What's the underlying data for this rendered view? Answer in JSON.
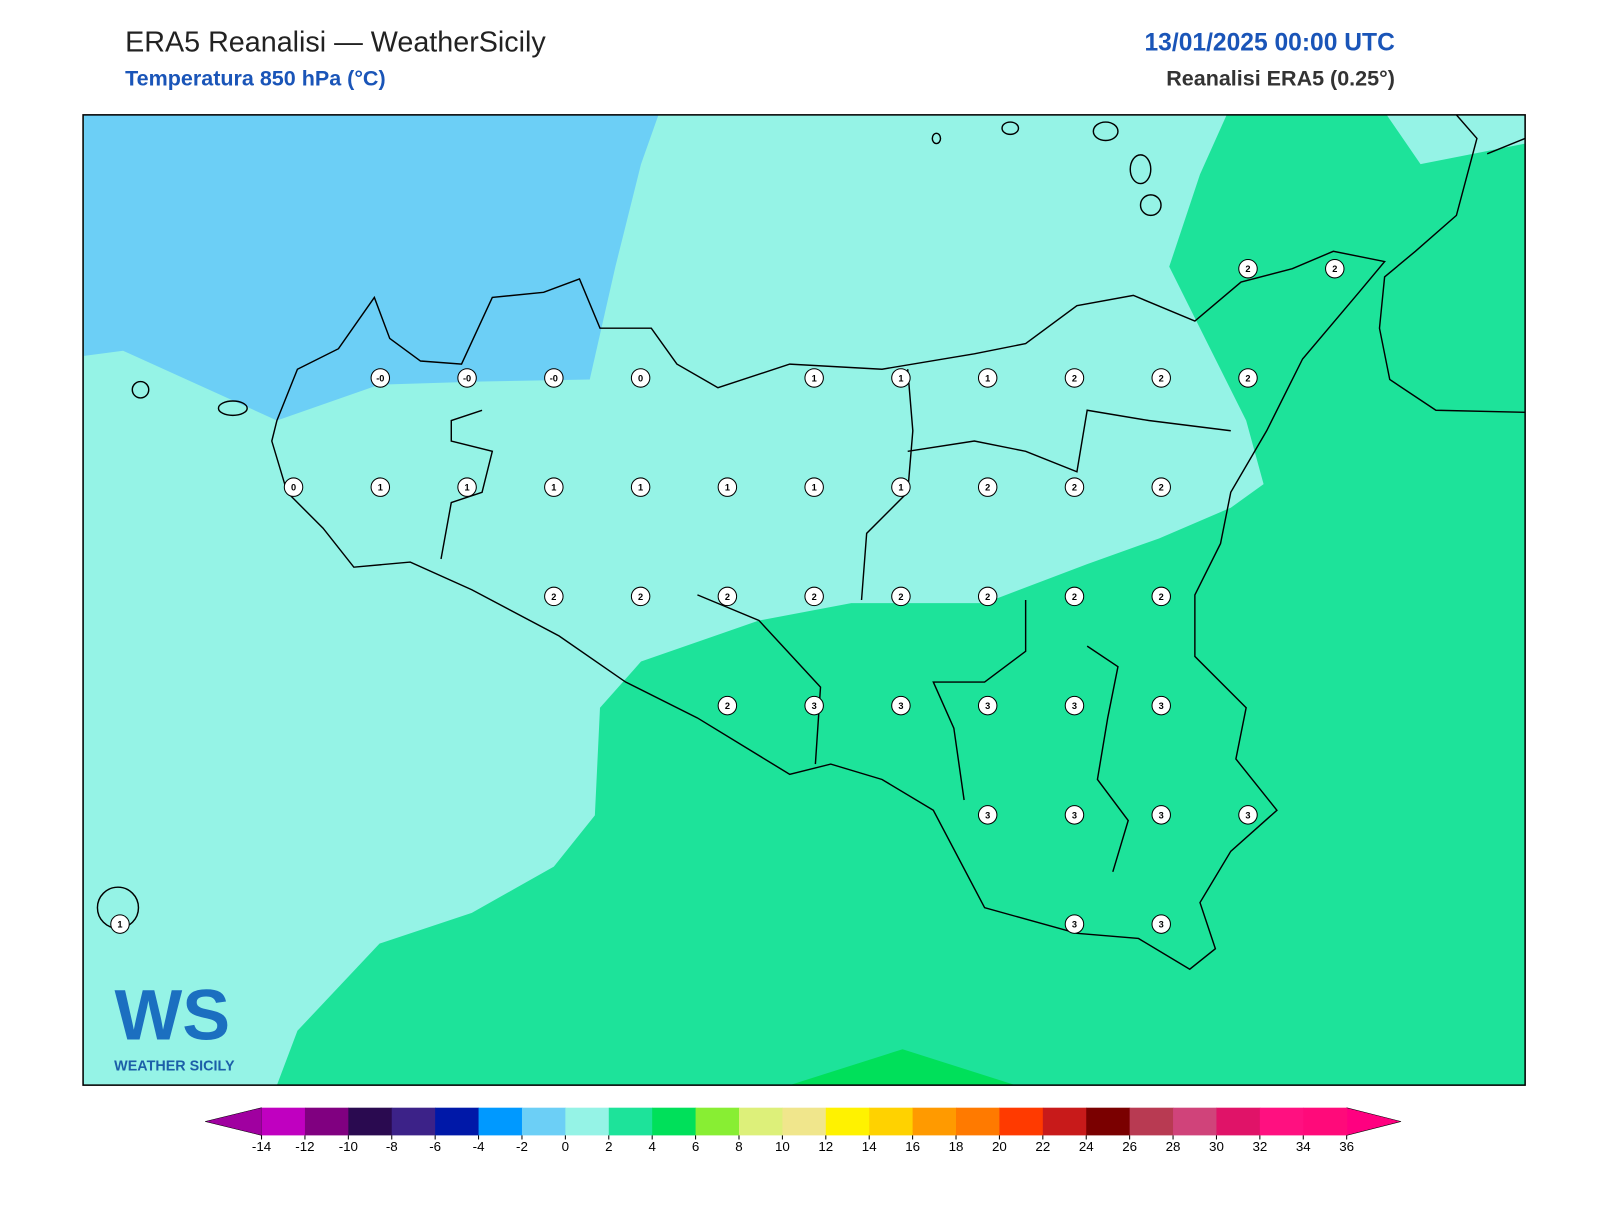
{
  "header": {
    "title": "ERA5 Reanalisi — WeatherSicily",
    "subtitle": "Temperatura 850 hPa (°C)",
    "datetime": "13/01/2025 00:00 UTC",
    "source": "Reanalisi ERA5 (0.25°)"
  },
  "logo": {
    "mark": "WS",
    "text": "WEATHER SICILY"
  },
  "grid": [
    [
      null,
      null,
      null,
      null,
      null,
      null,
      null,
      null,
      null,
      null,
      null,
      null,
      null,
      "2",
      "2"
    ],
    [
      null,
      null,
      null,
      "-0",
      "-0",
      "-0",
      "0",
      null,
      "1",
      "1",
      "1",
      "2",
      "2",
      "2",
      null
    ],
    [
      null,
      null,
      "0",
      "1",
      "1",
      "1",
      "1",
      "1",
      "1",
      "1",
      "2",
      "2",
      "2",
      null,
      null
    ],
    [
      null,
      null,
      null,
      null,
      null,
      "2",
      "2",
      "2",
      "2",
      "2",
      "2",
      "2",
      "2",
      null,
      null
    ],
    [
      null,
      null,
      null,
      null,
      null,
      null,
      null,
      "2",
      "3",
      "3",
      "3",
      "3",
      "3",
      null,
      null
    ],
    [
      null,
      null,
      null,
      null,
      null,
      null,
      null,
      null,
      null,
      null,
      "3",
      "3",
      "3",
      "3",
      null
    ],
    [
      "1",
      null,
      null,
      null,
      null,
      null,
      null,
      null,
      null,
      null,
      null,
      "3",
      "3",
      null,
      null
    ]
  ],
  "colorbar": {
    "ticks": [
      -14,
      -12,
      -10,
      -8,
      -6,
      -4,
      -2,
      0,
      2,
      4,
      6,
      8,
      10,
      12,
      14,
      16,
      18,
      20,
      22,
      24,
      26,
      28,
      30,
      32,
      34,
      36
    ],
    "colors": [
      "#c000c0",
      "#800080",
      "#2a0a50",
      "#3c2288",
      "#0018a8",
      "#0099ff",
      "#6ccff6",
      "#95f3e6",
      "#1de39a",
      "#00e05a",
      "#88ee33",
      "#ddf07a",
      "#f0e68c",
      "#fff200",
      "#ffd200",
      "#ff9a00",
      "#ff7a00",
      "#ff3a00",
      "#c81a1a",
      "#7a0000",
      "#b83a52",
      "#d0437a",
      "#e01368",
      "#ff1080",
      "#ff0a7a"
    ],
    "under": "#a000a0",
    "over": "#ff0080"
  }
}
